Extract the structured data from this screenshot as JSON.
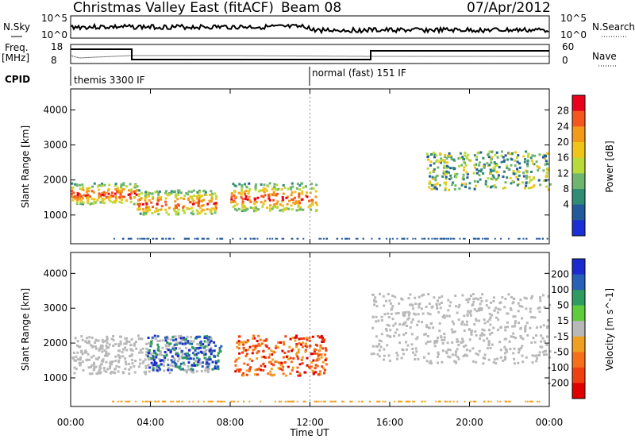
{
  "header": {
    "station": "Christmas Valley East (fitACF)",
    "beam": "Beam 08",
    "date": "07/Apr/2012"
  },
  "strips": {
    "nsky_label": "N.Sky",
    "nsky_ticks": [
      "10^5",
      "10^0"
    ],
    "nsearch_label": "N.Search",
    "nsearch_ticks": [
      "10^5",
      "10^0"
    ],
    "freq_label_1": "Freq.",
    "freq_label_2": "[MHz]",
    "freq_ticks": [
      "18",
      "8"
    ],
    "nave_label": "Nave",
    "nave_ticks": [
      "60",
      "0"
    ],
    "cpid_label": "CPID",
    "cpid_modes": [
      "themis 3300 IF",
      "normal (fast) 151 IF"
    ]
  },
  "chart_data": [
    {
      "type": "heatmap",
      "name": "power-panel",
      "ylabel": "Slant Range [km]",
      "xlabel": "Time UT",
      "x_ticks": [
        "00:00",
        "04:00",
        "08:00",
        "12:00",
        "16:00",
        "20:00",
        "00:00"
      ],
      "xlim_hours": [
        0,
        24
      ],
      "y_ticks": [
        1000,
        2000,
        3000,
        4000
      ],
      "ylim": [
        180,
        4600
      ],
      "colorbar": {
        "label": "Power [dB]",
        "ticks": [
          "28",
          "24",
          "20",
          "16",
          "12",
          "8",
          "4"
        ],
        "colors": [
          "#e8001c",
          "#f5561e",
          "#f49a1b",
          "#efc51a",
          "#bada3a",
          "#6fb56f",
          "#2f8c75",
          "#225a9b",
          "#1b2fd6"
        ]
      },
      "features": [
        {
          "t_start": 0.0,
          "t_end": 3.3,
          "range_min": 1300,
          "range_max": 1900,
          "level": "high"
        },
        {
          "t_start": 3.3,
          "t_end": 7.3,
          "range_min": 1000,
          "range_max": 1700,
          "level": "high"
        },
        {
          "t_start": 8.0,
          "t_end": 12.3,
          "range_min": 1100,
          "range_max": 1900,
          "level": "high"
        },
        {
          "t_start": 17.8,
          "t_end": 24.0,
          "range_min": 1700,
          "range_max": 2800,
          "level": "medium"
        }
      ]
    },
    {
      "type": "heatmap",
      "name": "velocity-panel",
      "ylabel": "Slant Range [km]",
      "xlabel": "Time UT",
      "x_ticks": [
        "00:00",
        "04:00",
        "08:00",
        "12:00",
        "16:00",
        "20:00",
        "00:00"
      ],
      "xlim_hours": [
        0,
        24
      ],
      "y_ticks": [
        1000,
        2000,
        3000,
        4000
      ],
      "ylim": [
        180,
        4600
      ],
      "colorbar": {
        "label": "Velocity [m s^-1]",
        "ticks": [
          "200",
          "100",
          "50",
          "15",
          "-15",
          "-50",
          "-100",
          "-200"
        ],
        "colors": [
          "#1c2bd0",
          "#2660b8",
          "#2e9c60",
          "#5fcc3b",
          "#b8b8b8",
          "#f0a020",
          "#f57018",
          "#f04010",
          "#e00000"
        ]
      },
      "features": [
        {
          "t_start": 0.0,
          "t_end": 7.0,
          "range_min": 1100,
          "range_max": 2200,
          "level": "ground-scatter"
        },
        {
          "t_start": 3.8,
          "t_end": 7.5,
          "range_min": 1200,
          "range_max": 2200,
          "level": "positive"
        },
        {
          "t_start": 8.2,
          "t_end": 12.8,
          "range_min": 1050,
          "range_max": 2200,
          "level": "negative"
        },
        {
          "t_start": 15.0,
          "t_end": 24.0,
          "range_min": 1400,
          "range_max": 3400,
          "level": "ground-scatter"
        }
      ]
    }
  ]
}
